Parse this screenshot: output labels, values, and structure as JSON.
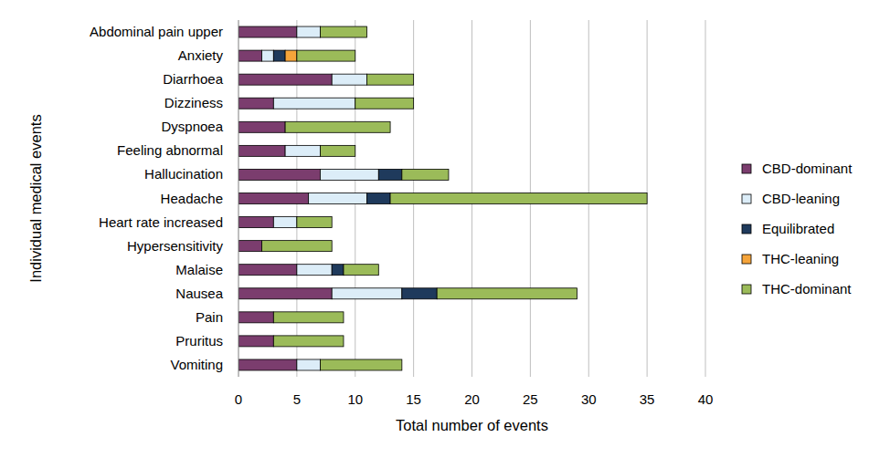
{
  "chart_data": {
    "type": "bar",
    "orientation": "horizontal",
    "stacked": true,
    "x_label": "Total number of events",
    "y_label": "Individual medical events",
    "categories": [
      "Abdominal pain upper",
      "Anxiety",
      "Diarrhoea",
      "Dizziness",
      "Dyspnoea",
      "Feeling abnormal",
      "Hallucination",
      "Headache",
      "Heart rate increased",
      "Hypersensitivity",
      "Malaise",
      "Nausea",
      "Pain",
      "Pruritus",
      "Vomiting"
    ],
    "series": [
      {
        "name": "CBD-dominant",
        "color": "#7b3d6e",
        "values": [
          5,
          2,
          8,
          3,
          4,
          4,
          7,
          6,
          3,
          2,
          5,
          8,
          3,
          3,
          5
        ]
      },
      {
        "name": "CBD-leaning",
        "color": "#dcedf8",
        "values": [
          2,
          1,
          3,
          7,
          0,
          3,
          5,
          5,
          2,
          0,
          3,
          6,
          0,
          0,
          2
        ]
      },
      {
        "name": "Equilibrated",
        "color": "#1f3a5c",
        "values": [
          0,
          1,
          0,
          0,
          0,
          0,
          2,
          2,
          0,
          0,
          1,
          3,
          0,
          0,
          0
        ]
      },
      {
        "name": "THC-leaning",
        "color": "#f5a43a",
        "values": [
          0,
          1,
          0,
          0,
          0,
          0,
          0,
          0,
          0,
          0,
          0,
          0,
          0,
          0,
          0
        ]
      },
      {
        "name": "THC-dominant",
        "color": "#9bbb59",
        "values": [
          4,
          5,
          4,
          5,
          9,
          3,
          4,
          22,
          3,
          6,
          3,
          12,
          6,
          6,
          7
        ]
      }
    ],
    "xlim": [
      0,
      40
    ],
    "xticks": [
      0,
      5,
      10,
      15,
      20,
      25,
      30,
      35,
      40
    ],
    "grid": true,
    "legend": "right"
  }
}
